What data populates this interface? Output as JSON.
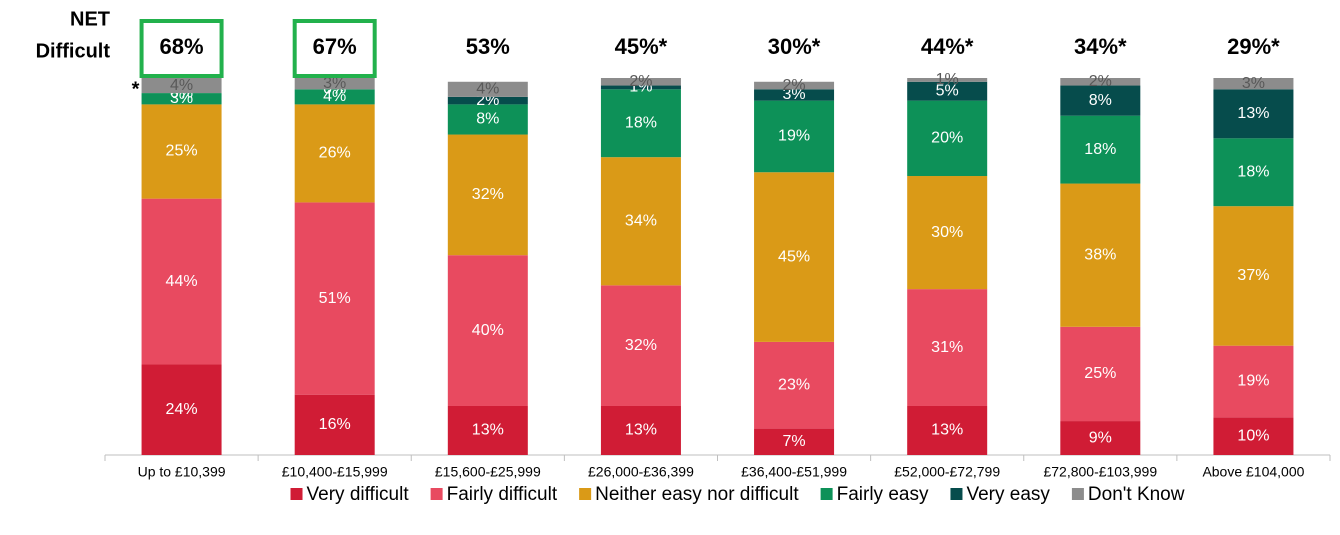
{
  "chart_data": {
    "type": "stacked_bar",
    "net_title_lines": [
      "NET",
      "Difficult"
    ],
    "net_values": [
      68,
      67,
      53,
      45,
      30,
      44,
      34,
      29
    ],
    "net_value_labels": [
      "68%",
      "67%",
      "53%",
      "45%*",
      "30%*",
      "44%*",
      "34%*",
      "29%*"
    ],
    "net_highlighted": [
      true,
      true,
      false,
      false,
      false,
      false,
      false,
      false
    ],
    "net_highlight_color": "#22b14c",
    "annotation": "*",
    "categories": [
      "Up to £10,399",
      "£10,400-£15,999",
      "£15,600-£25,999",
      "£26,000-£36,399",
      "£36,400-£51,999",
      "£52,000-£72,799",
      "£72,800-£103,999",
      "Above £104,000"
    ],
    "ylim": [
      0,
      100
    ],
    "series": [
      {
        "name": "Very difficult",
        "color": "#d01c35",
        "values": [
          24,
          16,
          13,
          13,
          7,
          13,
          9,
          10
        ],
        "value_labels": [
          "24%",
          "16%",
          "13%",
          "13%",
          "7%",
          "13%",
          "9%",
          "10%"
        ]
      },
      {
        "name": "Fairly difficult",
        "color": "#e84a60",
        "values": [
          44,
          51,
          40,
          32,
          23,
          31,
          25,
          19
        ],
        "value_labels": [
          "44%",
          "51%",
          "40%",
          "32%",
          "23%",
          "31%",
          "25%",
          "19%"
        ]
      },
      {
        "name": "Neither easy nor difficult",
        "color": "#da9a17",
        "values": [
          25,
          26,
          32,
          34,
          45,
          30,
          38,
          37
        ],
        "value_labels": [
          "25%",
          "26%",
          "32%",
          "34%",
          "45%",
          "30%",
          "38%",
          "37%"
        ]
      },
      {
        "name": "Fairly easy",
        "color": "#0d9158",
        "values": [
          3,
          4,
          8,
          18,
          19,
          20,
          18,
          18
        ],
        "value_labels": [
          "3%",
          "4%",
          "8%",
          "18%",
          "19%",
          "20%",
          "18%",
          "18%"
        ]
      },
      {
        "name": "Very easy",
        "color": "#064c4c",
        "values": [
          0,
          0,
          2,
          1,
          3,
          5,
          8,
          13
        ],
        "value_labels": [
          "0%",
          "0%",
          "2%",
          "1%",
          "3%",
          "5%",
          "8%",
          "13%"
        ]
      },
      {
        "name": "Don't Know",
        "color": "#8c8c8c",
        "values": [
          4,
          3,
          4,
          2,
          2,
          1,
          2,
          3
        ],
        "value_labels": [
          "4%",
          "3%",
          "4%",
          "2%",
          "2%",
          "1%",
          "2%",
          "3%"
        ]
      }
    ]
  }
}
